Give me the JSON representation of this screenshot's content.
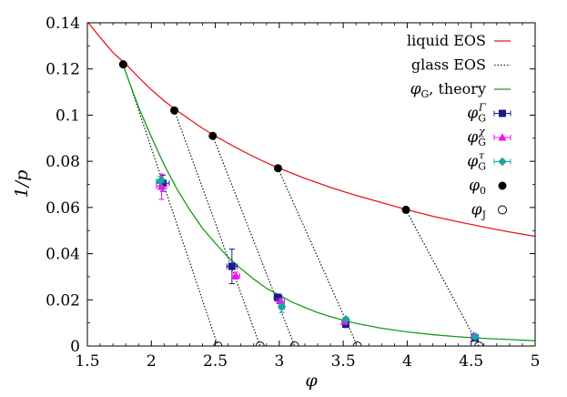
{
  "chart_data": {
    "type": "scatter",
    "xlabel": "φ",
    "ylabel": "1/p",
    "xlim": [
      1.5,
      5
    ],
    "ylim": [
      0,
      0.14
    ],
    "xticks": [
      "1.5",
      "2",
      "2.5",
      "3",
      "3.5",
      "4",
      "4.5",
      "5"
    ],
    "yticks": [
      "0",
      "0.02",
      "0.04",
      "0.06",
      "0.08",
      "0.1",
      "0.12",
      "0.14"
    ],
    "grid": false,
    "legend_position": "top-right",
    "series": [
      {
        "name": "liquid EOS",
        "kind": "curve",
        "color": "#e8191b",
        "x": [
          1.5,
          1.6,
          1.7,
          1.8,
          1.9,
          2.0,
          2.1,
          2.2,
          2.3,
          2.4,
          2.5,
          2.6,
          2.7,
          2.8,
          2.9,
          3.0,
          3.2,
          3.4,
          3.6,
          3.8,
          4.0,
          4.2,
          4.4,
          4.6,
          4.8,
          5.0
        ],
        "y": [
          0.1405,
          0.1336,
          0.1271,
          0.1221,
          0.1164,
          0.111,
          0.1062,
          0.102,
          0.0981,
          0.0943,
          0.0909,
          0.0878,
          0.0848,
          0.082,
          0.0794,
          0.077,
          0.0726,
          0.0687,
          0.0652,
          0.0621,
          0.059,
          0.0562,
          0.0538,
          0.0515,
          0.0494,
          0.0475
        ]
      },
      {
        "name": "glass EOS",
        "kind": "dotted-lines",
        "color": "#000000",
        "segments": [
          [
            [
              1.78,
              0.122
            ],
            [
              2.52,
              0.0
            ]
          ],
          [
            [
              2.18,
              0.102
            ],
            [
              2.85,
              0.0
            ]
          ],
          [
            [
              2.48,
              0.091
            ],
            [
              3.12,
              0.0
            ]
          ],
          [
            [
              2.99,
              0.077
            ],
            [
              3.61,
              0.0
            ]
          ],
          [
            [
              3.99,
              0.059
            ],
            [
              4.56,
              0.0
            ]
          ]
        ]
      },
      {
        "name": "φG, theory",
        "kind": "curve",
        "color": "#1a9a1a",
        "x": [
          1.78,
          1.9,
          2.0,
          2.1,
          2.2,
          2.3,
          2.4,
          2.5,
          2.6,
          2.7,
          2.8,
          2.9,
          3.0,
          3.1,
          3.2,
          3.3,
          3.4,
          3.5,
          3.6,
          3.8,
          4.0,
          4.2,
          4.4,
          4.6,
          4.8,
          5.0
        ],
        "y": [
          0.1215,
          0.1035,
          0.0905,
          0.0785,
          0.068,
          0.059,
          0.051,
          0.0445,
          0.0385,
          0.0335,
          0.029,
          0.025,
          0.022,
          0.019,
          0.0167,
          0.0145,
          0.0127,
          0.0112,
          0.0098,
          0.0077,
          0.0061,
          0.0049,
          0.004,
          0.0033,
          0.0028,
          0.0023
        ]
      },
      {
        "name": "φGΓ",
        "kind": "points",
        "marker": "square",
        "color": "#1a1a8c",
        "points": [
          {
            "x": 2.09,
            "y": 0.0705,
            "xerr": 0.05,
            "yerr": 0.0035
          },
          {
            "x": 2.63,
            "y": 0.0345,
            "xerr": 0.04,
            "yerr": 0.0075
          },
          {
            "x": 2.99,
            "y": 0.021,
            "xerr": 0.03,
            "yerr": 0.0015
          },
          {
            "x": 3.52,
            "y": 0.0095,
            "xerr": 0.02,
            "yerr": 0.0015
          },
          {
            "x": 4.53,
            "y": 0.0035,
            "xerr": 0.02,
            "yerr": 0.0008
          }
        ]
      },
      {
        "name": "φGχ",
        "kind": "points",
        "marker": "triangle",
        "color": "#ee11ee",
        "points": [
          {
            "x": 2.08,
            "y": 0.069,
            "xerr": 0.04,
            "yerr": 0.0055
          },
          {
            "x": 2.66,
            "y": 0.0305,
            "xerr": 0.03,
            "yerr": 0.0015
          },
          {
            "x": 3.01,
            "y": 0.0195,
            "xerr": 0.03,
            "yerr": 0.001
          },
          {
            "x": 3.51,
            "y": 0.0105,
            "xerr": 0.02,
            "yerr": 0.0008
          },
          {
            "x": 4.52,
            "y": 0.0045,
            "xerr": 0.02,
            "yerr": 0.0005
          }
        ]
      },
      {
        "name": "φGτ",
        "kind": "points",
        "marker": "diamond",
        "color": "#1aa5a0",
        "points": [
          {
            "x": 2.07,
            "y": 0.0715,
            "xerr": 0.03,
            "yerr": 0.002
          },
          {
            "x": 3.02,
            "y": 0.017,
            "xerr": 0.02,
            "yerr": 0.0025
          },
          {
            "x": 3.52,
            "y": 0.0115,
            "xerr": 0.02,
            "yerr": 0.0008
          },
          {
            "x": 4.53,
            "y": 0.004,
            "xerr": 0.02,
            "yerr": 0.0005
          }
        ]
      },
      {
        "name": "φ0",
        "kind": "points",
        "marker": "filled-circle",
        "color": "#000000",
        "points": [
          {
            "x": 1.78,
            "y": 0.122
          },
          {
            "x": 2.18,
            "y": 0.102
          },
          {
            "x": 2.48,
            "y": 0.091
          },
          {
            "x": 2.99,
            "y": 0.077
          },
          {
            "x": 3.99,
            "y": 0.059
          }
        ]
      },
      {
        "name": "φJ",
        "kind": "points",
        "marker": "open-circle",
        "color": "#000000",
        "points": [
          {
            "x": 2.52,
            "y": 0.0
          },
          {
            "x": 2.85,
            "y": 0.0
          },
          {
            "x": 3.12,
            "y": 0.0
          },
          {
            "x": 3.61,
            "y": 0.0
          },
          {
            "x": 4.56,
            "y": 0.0
          }
        ]
      }
    ],
    "legend": [
      {
        "label": "liquid EOS",
        "kind": "line",
        "color": "#e8191b"
      },
      {
        "label": "glass EOS",
        "kind": "dotted",
        "color": "#000000"
      },
      {
        "label_main": "φ",
        "label_sub": "G",
        "label_suffix": ", theory",
        "kind": "line",
        "color": "#1a9a1a"
      },
      {
        "label_main": "φ",
        "label_sub": "G",
        "label_sup": "Γ",
        "kind": "marker",
        "marker": "square",
        "color": "#1a1a8c"
      },
      {
        "label_main": "φ",
        "label_sub": "G",
        "label_sup": "χ",
        "kind": "marker",
        "marker": "triangle",
        "color": "#ee11ee"
      },
      {
        "label_main": "φ",
        "label_sub": "G",
        "label_sup": "τ",
        "kind": "marker",
        "marker": "diamond",
        "color": "#1aa5a0"
      },
      {
        "label_main": "φ",
        "label_sub": "0",
        "kind": "marker",
        "marker": "filled-circle",
        "color": "#000000"
      },
      {
        "label_main": "φ",
        "label_sub": "J",
        "kind": "marker",
        "marker": "open-circle",
        "color": "#000000"
      }
    ]
  }
}
